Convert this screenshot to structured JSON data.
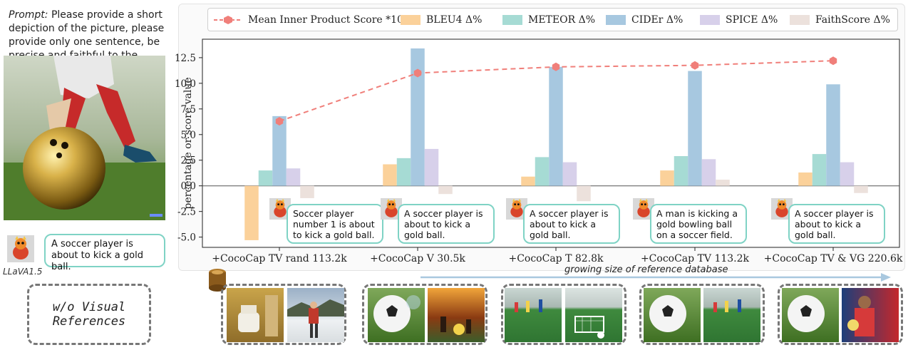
{
  "prompt": {
    "label": "Prompt:",
    "text": "Please provide a short depiction of the picture, please provide only one sentence, be precise and faithful to the image."
  },
  "llava": {
    "name": "LLaVA1.5",
    "caption": "A soccer player is about to kick a gold ball."
  },
  "no_visual": {
    "line1": "w/o Visual",
    "line2": "References"
  },
  "growing_label": "growing size of reference database",
  "chart_data": {
    "type": "bar",
    "title": "",
    "xlabel": "",
    "ylabel": "percentage or score value",
    "ylim": [
      -6.0,
      14.3
    ],
    "yticks": [
      -5.0,
      -2.5,
      0.0,
      2.5,
      5.0,
      7.5,
      10.0,
      12.5
    ],
    "grid": false,
    "legend_position": "top",
    "categories": [
      "+CocoCap TV rand 113.2k",
      "+CocoCap V 30.5k",
      "+CocoCap T 82.8k",
      "+CocoCap TV 113.2k",
      "+CocoCap TV & VG 220.6k"
    ],
    "series": [
      {
        "name": "Mean Inner Product Score *10",
        "kind": "line",
        "color": "#f07f7a",
        "values": [
          6.3,
          11.0,
          11.6,
          11.75,
          12.2
        ]
      },
      {
        "name": "BLEU4 Δ%",
        "kind": "bar",
        "color": "#fbd19a",
        "values": [
          -5.3,
          2.1,
          0.9,
          1.5,
          1.3
        ]
      },
      {
        "name": "METEOR Δ%",
        "kind": "bar",
        "color": "#a6dbd4",
        "values": [
          1.5,
          2.7,
          2.8,
          2.9,
          3.1
        ]
      },
      {
        "name": "CIDEr Δ%",
        "kind": "bar",
        "color": "#a7c8e0",
        "values": [
          6.8,
          13.4,
          11.6,
          11.2,
          9.9
        ]
      },
      {
        "name": "SPICE Δ%",
        "kind": "bar",
        "color": "#d7d0ea",
        "values": [
          1.7,
          3.6,
          2.3,
          2.6,
          2.3
        ]
      },
      {
        "name": "FaithScore Δ%",
        "kind": "bar",
        "color": "#ece1dc",
        "values": [
          -1.2,
          -0.8,
          -1.5,
          0.6,
          -0.7
        ]
      }
    ]
  },
  "captions": [
    "Soccer player number 1 is about to kick a gold ball.",
    "A soccer player is about to kick a gold ball.",
    "A soccer player is about to kick a gold ball.",
    "A man is kicking a gold bowling ball on a soccer field.",
    "A soccer player is about to kick a gold ball."
  ],
  "colors": {
    "bubble_border": "#7fd3c5",
    "arrow": "#a9c8df"
  }
}
